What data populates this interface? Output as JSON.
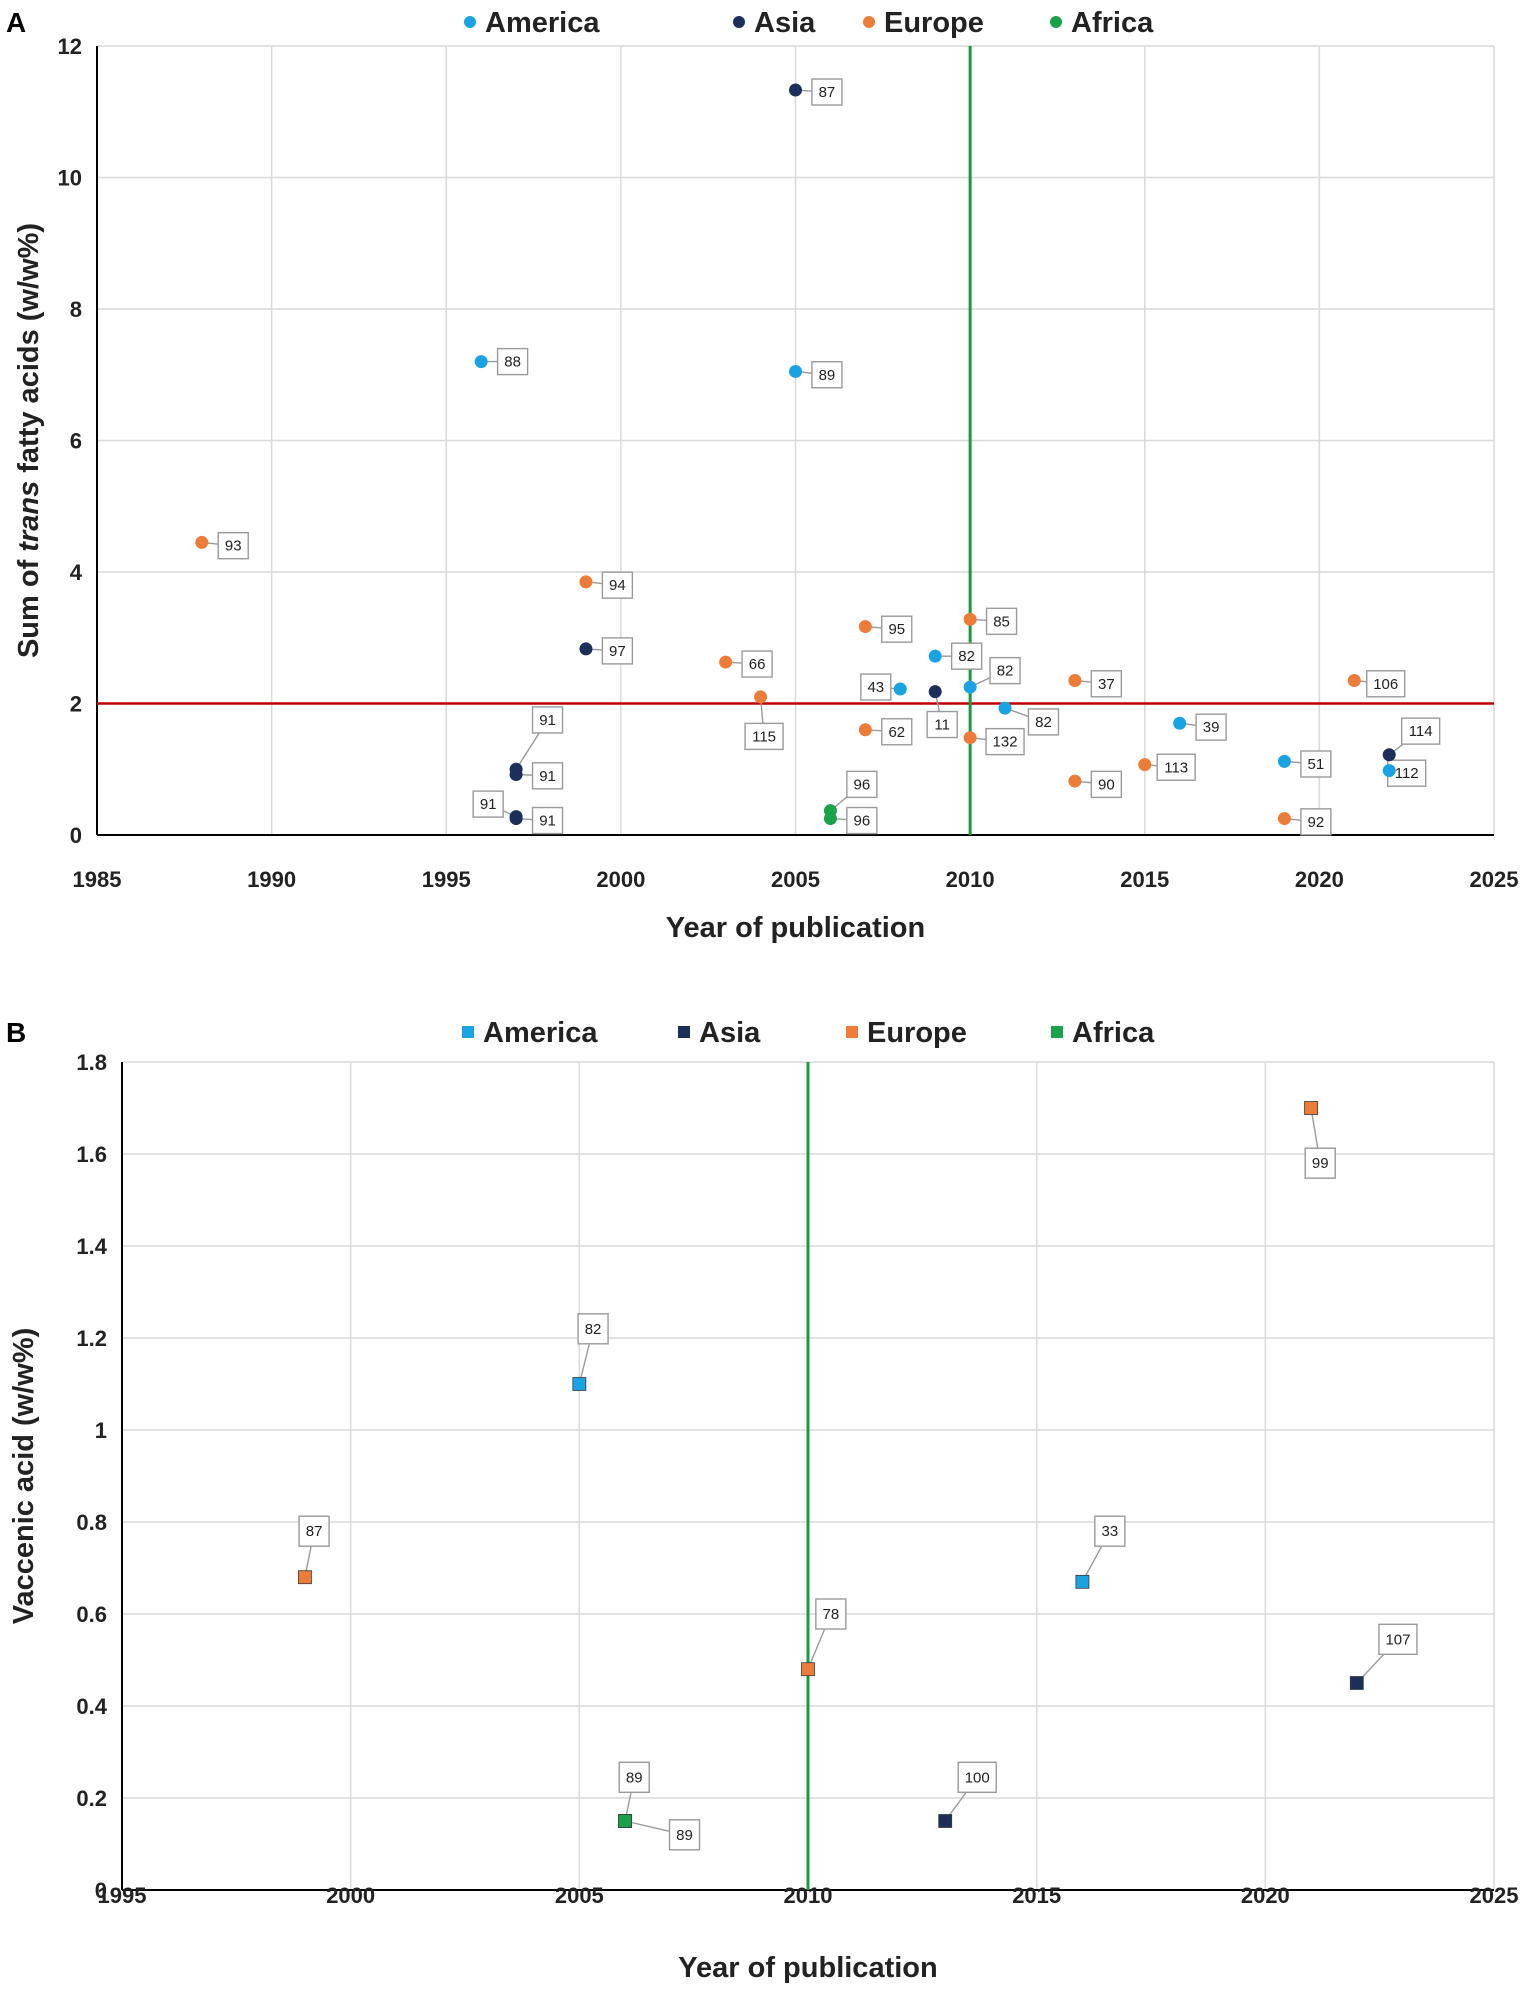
{
  "colors": {
    "America": "#1aa3e2",
    "Asia": "#1c2f5a",
    "Europe": "#ec7c38",
    "Africa": "#1aa24a",
    "threshold_line": "#c00000",
    "year_line": "#1a9a3e"
  },
  "chart_data": [
    {
      "panel": "A",
      "type": "scatter",
      "marker": "circle",
      "xlabel": "Year of publication",
      "ylabel_parts": [
        "Sum of ",
        "trans",
        " fatty acids (w/w%)"
      ],
      "xlim": [
        1985,
        2025
      ],
      "ylim": [
        0,
        12
      ],
      "xticks": [
        1985,
        1990,
        1995,
        2000,
        2005,
        2010,
        2015,
        2020,
        2025
      ],
      "yticks": [
        0,
        2,
        4,
        6,
        8,
        10,
        12
      ],
      "legend": [
        "America",
        "Asia",
        "Europe",
        "Africa"
      ],
      "hline": 2,
      "vline": 2010,
      "series": [
        {
          "name": "America",
          "points": [
            {
              "x": 1996,
              "y": 7.2,
              "label": "88",
              "lx": 1996.9,
              "ly": 7.2
            },
            {
              "x": 2005,
              "y": 7.05,
              "label": "89",
              "lx": 2005.9,
              "ly": 7.0
            },
            {
              "x": 2008,
              "y": 2.22,
              "label": "43",
              "lx": 2007.3,
              "ly": 2.25
            },
            {
              "x": 2009,
              "y": 2.72,
              "label": "82",
              "lx": 2009.9,
              "ly": 2.72
            },
            {
              "x": 2010,
              "y": 2.25,
              "label": "82",
              "lx": 2011.0,
              "ly": 2.5
            },
            {
              "x": 2011,
              "y": 1.93,
              "label": "82",
              "lx": 2012.1,
              "ly": 1.72
            },
            {
              "x": 2016,
              "y": 1.7,
              "label": "39",
              "lx": 2016.9,
              "ly": 1.64
            },
            {
              "x": 2019,
              "y": 1.12,
              "label": "51",
              "lx": 2019.9,
              "ly": 1.08
            },
            {
              "x": 2022,
              "y": 0.98,
              "label": "112",
              "lx": 2022.5,
              "ly": 0.94
            }
          ]
        },
        {
          "name": "Asia",
          "points": [
            {
              "x": 2005,
              "y": 11.33,
              "label": "87",
              "lx": 2005.9,
              "ly": 11.3
            },
            {
              "x": 1999,
              "y": 2.83,
              "label": "97",
              "lx": 1999.9,
              "ly": 2.8
            },
            {
              "x": 2009,
              "y": 2.18,
              "label": "11",
              "lx": 2009.2,
              "ly": 1.68
            },
            {
              "x": 1997,
              "y": 1.0,
              "label": "91",
              "lx": 1997.9,
              "ly": 1.75
            },
            {
              "x": 1997,
              "y": 0.92,
              "label": "91",
              "lx": 1997.9,
              "ly": 0.9
            },
            {
              "x": 1997,
              "y": 0.28,
              "label": "91",
              "lx": 1996.2,
              "ly": 0.47
            },
            {
              "x": 1997,
              "y": 0.25,
              "label": "91",
              "lx": 1997.9,
              "ly": 0.22
            },
            {
              "x": 2022,
              "y": 1.22,
              "label": "114",
              "lx": 2022.9,
              "ly": 1.58
            }
          ]
        },
        {
          "name": "Europe",
          "points": [
            {
              "x": 1988,
              "y": 4.45,
              "label": "93",
              "lx": 1988.9,
              "ly": 4.4
            },
            {
              "x": 1999,
              "y": 3.85,
              "label": "94",
              "lx": 1999.9,
              "ly": 3.8
            },
            {
              "x": 2007,
              "y": 3.17,
              "label": "95",
              "lx": 2007.9,
              "ly": 3.13
            },
            {
              "x": 2010,
              "y": 3.28,
              "label": "85",
              "lx": 2010.9,
              "ly": 3.25
            },
            {
              "x": 2003,
              "y": 2.63,
              "label": "66",
              "lx": 2003.9,
              "ly": 2.6
            },
            {
              "x": 2004,
              "y": 2.1,
              "label": "115",
              "lx": 2004.1,
              "ly": 1.5
            },
            {
              "x": 2007,
              "y": 1.6,
              "label": "62",
              "lx": 2007.9,
              "ly": 1.57
            },
            {
              "x": 2013,
              "y": 2.35,
              "label": "37",
              "lx": 2013.9,
              "ly": 2.3
            },
            {
              "x": 2021,
              "y": 2.35,
              "label": "106",
              "lx": 2021.9,
              "ly": 2.3
            },
            {
              "x": 2010,
              "y": 1.48,
              "label": "132",
              "lx": 2011.0,
              "ly": 1.42
            },
            {
              "x": 2013,
              "y": 0.82,
              "label": "90",
              "lx": 2013.9,
              "ly": 0.77
            },
            {
              "x": 2015,
              "y": 1.07,
              "label": "113",
              "lx": 2015.9,
              "ly": 1.03
            },
            {
              "x": 2019,
              "y": 0.25,
              "label": "92",
              "lx": 2019.9,
              "ly": 0.2
            }
          ]
        },
        {
          "name": "Africa",
          "points": [
            {
              "x": 2006,
              "y": 0.37,
              "label": "96",
              "lx": 2006.9,
              "ly": 0.77
            },
            {
              "x": 2006,
              "y": 0.25,
              "label": "96",
              "lx": 2006.9,
              "ly": 0.22
            }
          ]
        }
      ]
    },
    {
      "panel": "B",
      "type": "scatter",
      "marker": "square",
      "xlabel": "Year of publication",
      "ylabel": "Vaccenic acid (w/w%)",
      "xlim": [
        1995,
        2025
      ],
      "ylim": [
        0,
        1.8
      ],
      "xticks": [
        1995,
        2000,
        2005,
        2010,
        2015,
        2020,
        2025
      ],
      "yticks": [
        0,
        0.2,
        0.4,
        0.6,
        0.8,
        1,
        1.2,
        1.4,
        1.6,
        1.8
      ],
      "yticklabels": [
        "0",
        "0.2",
        "0.4",
        "0.6",
        "0.8",
        "1",
        "1.2",
        "1.4",
        "1.6",
        "1.8"
      ],
      "legend": [
        "America",
        "Asia",
        "Europe",
        "Africa"
      ],
      "vline": 2010,
      "series": [
        {
          "name": "America",
          "points": [
            {
              "x": 2005,
              "y": 1.1,
              "label": "82",
              "lx": 2005.3,
              "ly": 1.22
            },
            {
              "x": 2016,
              "y": 0.67,
              "label": "33",
              "lx": 2016.6,
              "ly": 0.78
            }
          ]
        },
        {
          "name": "Asia",
          "points": [
            {
              "x": 2013,
              "y": 0.15,
              "label": "100",
              "lx": 2013.7,
              "ly": 0.245
            },
            {
              "x": 2022,
              "y": 0.45,
              "label": "107",
              "lx": 2022.9,
              "ly": 0.545
            }
          ]
        },
        {
          "name": "Europe",
          "points": [
            {
              "x": 1999,
              "y": 0.68,
              "label": "87",
              "lx": 1999.2,
              "ly": 0.78
            },
            {
              "x": 2021,
              "y": 1.7,
              "label": "99",
              "lx": 2021.2,
              "ly": 1.58
            },
            {
              "x": 2010,
              "y": 0.48,
              "label": "78",
              "lx": 2010.5,
              "ly": 0.6
            }
          ]
        },
        {
          "name": "Africa",
          "points": [
            {
              "x": 2006,
              "y": 0.15,
              "label": "89",
              "lx": 2006.2,
              "ly": 0.245
            },
            {
              "x": 2006,
              "y": 0.15,
              "label": "89",
              "lx": 2007.3,
              "ly": 0.12
            }
          ]
        }
      ]
    }
  ]
}
